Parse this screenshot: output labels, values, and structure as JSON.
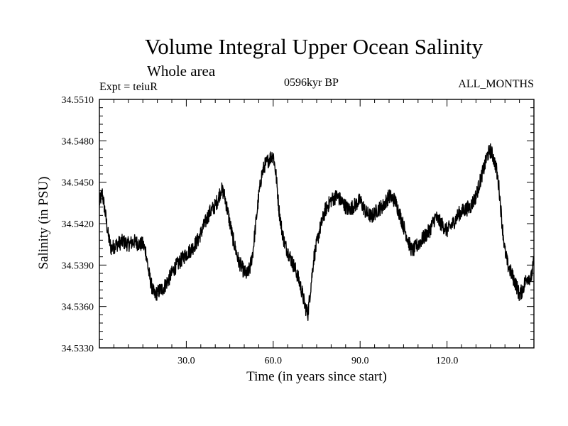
{
  "chart_data": {
    "type": "line",
    "title": "Volume Integral Upper Ocean Salinity",
    "subtitle": "Whole area",
    "left_label": "Expt = teiuR",
    "center_label": "0596kyr BP",
    "right_label": "ALL_MONTHS",
    "xlabel": "Time (in years since start)",
    "ylabel": "Salinity (in PSU)",
    "xlim": [
      0,
      150
    ],
    "ylim": [
      34.533,
      34.551
    ],
    "xticks": [
      30,
      60,
      90,
      120
    ],
    "xtick_labels": [
      "30.0",
      "60.0",
      "90.0",
      "120.0"
    ],
    "yticks": [
      34.533,
      34.536,
      34.539,
      34.542,
      34.545,
      34.548,
      34.551
    ],
    "ytick_labels": [
      "34.5330",
      "34.5360",
      "34.5390",
      "34.5420",
      "34.5450",
      "34.5480",
      "34.5510"
    ],
    "grid": false,
    "series": [
      {
        "name": "Salinity",
        "color": "#000000",
        "x": [
          0,
          1,
          2,
          3,
          4,
          6,
          8,
          10,
          12,
          14,
          15,
          16,
          17,
          18,
          19,
          20,
          21,
          22,
          24,
          26,
          28,
          30,
          32,
          34,
          36,
          38,
          40,
          41,
          42,
          43,
          44,
          46,
          48,
          50,
          51,
          52,
          53,
          54,
          55,
          56,
          57,
          58,
          59,
          60,
          61,
          62,
          63,
          64,
          65,
          66,
          67,
          68,
          69,
          70,
          71,
          72,
          73,
          74,
          76,
          78,
          80,
          82,
          84,
          86,
          88,
          90,
          92,
          94,
          96,
          98,
          100,
          102,
          104,
          105,
          106,
          107,
          108,
          110,
          112,
          114,
          116,
          118,
          120,
          122,
          124,
          126,
          128,
          130,
          132,
          133,
          134,
          135,
          136,
          137,
          138,
          139,
          140,
          141,
          142,
          143,
          144,
          145,
          146,
          147,
          148,
          149,
          150
        ],
        "values": [
          34.5435,
          34.5442,
          34.5428,
          34.5412,
          34.5402,
          34.5405,
          34.5407,
          34.5405,
          34.5407,
          34.5405,
          34.5405,
          34.54,
          34.5385,
          34.5375,
          34.5368,
          34.537,
          34.5372,
          34.5373,
          34.538,
          34.5388,
          34.5393,
          34.5398,
          34.5402,
          34.5408,
          34.5418,
          34.5428,
          34.5433,
          34.5438,
          34.5445,
          34.5442,
          34.5432,
          34.541,
          34.5393,
          34.5385,
          34.5383,
          34.5388,
          34.54,
          34.542,
          34.544,
          34.5455,
          34.5462,
          34.5465,
          34.5468,
          34.547,
          34.5455,
          34.543,
          34.5415,
          34.5405,
          34.54,
          34.5395,
          34.539,
          34.5385,
          34.5378,
          34.537,
          34.536,
          34.5355,
          34.5375,
          34.5395,
          34.5415,
          34.543,
          34.5437,
          34.544,
          34.5435,
          34.543,
          34.5433,
          34.5437,
          34.5428,
          34.5425,
          34.543,
          34.5433,
          34.544,
          34.5437,
          34.5425,
          34.5418,
          34.5412,
          34.5405,
          34.54,
          34.5405,
          34.541,
          34.5415,
          34.5425,
          34.542,
          34.5415,
          34.542,
          34.5427,
          34.543,
          34.5432,
          34.544,
          34.5455,
          34.5462,
          34.547,
          34.5473,
          34.5468,
          34.546,
          34.5445,
          34.542,
          34.54,
          34.539,
          34.5385,
          34.538,
          34.5375,
          34.5368,
          34.5372,
          34.5378,
          34.5382,
          34.538,
          34.5393
        ]
      }
    ]
  }
}
